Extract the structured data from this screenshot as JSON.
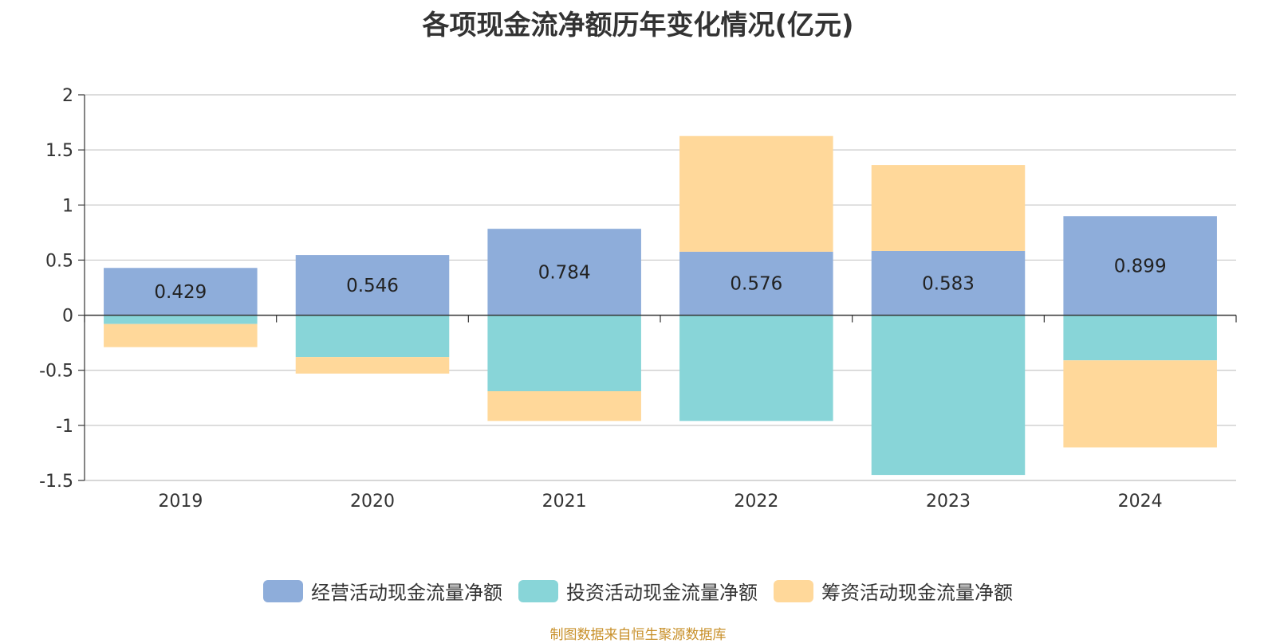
{
  "chart_data": {
    "type": "bar",
    "stacked": true,
    "title": "各项现金流净额历年变化情况(亿元)",
    "xlabel": "",
    "ylabel": "",
    "categories": [
      "2019",
      "2020",
      "2021",
      "2022",
      "2023",
      "2024"
    ],
    "ylim": [
      -1.5,
      2
    ],
    "yticks": [
      "2",
      "1.5",
      "1",
      "0.5",
      "0",
      "-0.5",
      "-1",
      "-1.5"
    ],
    "grid": true,
    "legend_position": "bottom",
    "series": [
      {
        "name": "经营活动现金流量净额",
        "color": "#8eadda",
        "values": [
          0.429,
          0.546,
          0.784,
          0.576,
          0.583,
          0.899
        ],
        "labels": [
          "0.429",
          "0.546",
          "0.784",
          "0.576",
          "0.583",
          "0.899"
        ]
      },
      {
        "name": "投资活动现金流量净额",
        "color": "#88d5d8",
        "values": [
          -0.08,
          -0.38,
          -0.69,
          -0.96,
          -1.45,
          -0.41
        ]
      },
      {
        "name": "筹资活动现金流量净额",
        "color": "#ffd89a",
        "values": [
          -0.21,
          -0.15,
          -0.27,
          1.05,
          0.78,
          -0.79
        ]
      }
    ]
  },
  "source": "制图数据来自恒生聚源数据库"
}
